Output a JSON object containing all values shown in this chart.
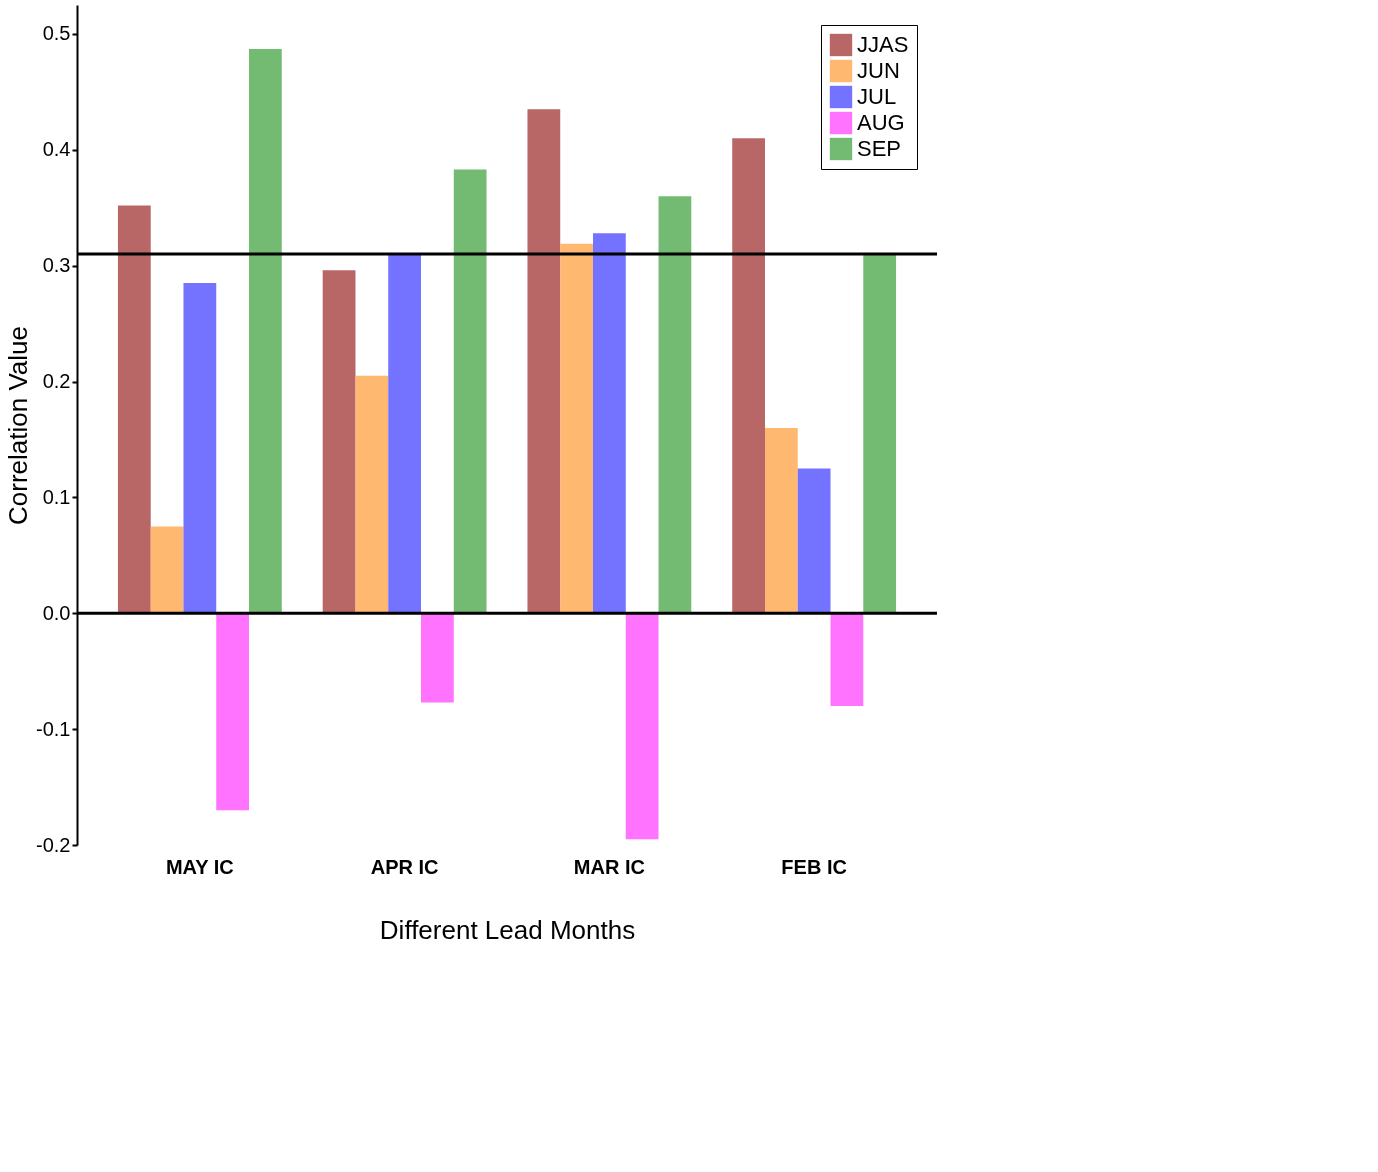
{
  "chart_data": {
    "type": "bar",
    "xlabel": "Different Lead Months",
    "ylabel": "Correlation Value",
    "categories": [
      "MAY IC",
      "APR IC",
      "MAR IC",
      "FEB IC"
    ],
    "series": [
      {
        "name": "JJAS",
        "color": "#b05555",
        "values": [
          0.352,
          0.296,
          0.435,
          0.41
        ]
      },
      {
        "name": "JUN",
        "color": "#ffb060",
        "values": [
          0.075,
          0.205,
          0.319,
          0.16
        ]
      },
      {
        "name": "JUL",
        "color": "#6464ff",
        "values": [
          0.285,
          0.31,
          0.328,
          0.125
        ]
      },
      {
        "name": "AUG",
        "color": "#ff64ff",
        "values": [
          -0.17,
          -0.077,
          -0.195,
          -0.08
        ]
      },
      {
        "name": "SEP",
        "color": "#64b464",
        "values": [
          0.487,
          0.383,
          0.36,
          0.31
        ]
      }
    ],
    "ylim": [
      -0.2,
      0.525
    ],
    "yticks": [
      {
        "value": -0.2,
        "label": "-0.2"
      },
      {
        "value": -0.1,
        "label": "-0.1"
      },
      {
        "value": 0,
        "label": "0.0"
      },
      {
        "value": 0.1,
        "label": "0.1"
      },
      {
        "value": 0.2,
        "label": "0.2"
      },
      {
        "value": 0.3,
        "label": "0.3"
      },
      {
        "value": 0.4,
        "label": "0.4"
      },
      {
        "value": 0.5,
        "label": "0.5"
      }
    ],
    "ref_lines": [
      {
        "axis": "y",
        "value": 0,
        "color": "#000000"
      },
      {
        "axis": "y",
        "value": 0.31,
        "color": "#000000"
      }
    ],
    "grid": false,
    "legend": "top right"
  }
}
